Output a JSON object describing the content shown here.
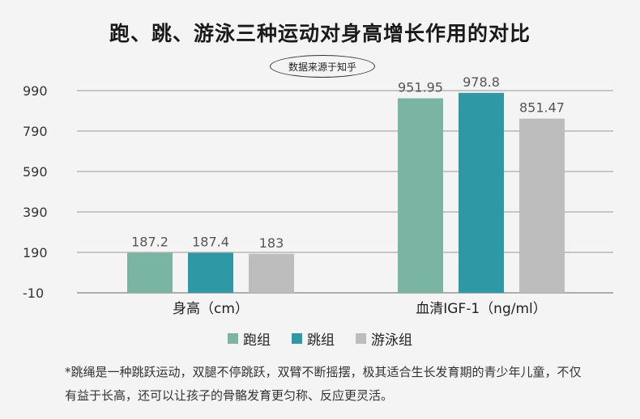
{
  "chart_data": {
    "type": "bar",
    "title": "跑、跳、游泳三种运动对身高增长作用的对比",
    "source": "数据来源于知乎",
    "categories": [
      "身高（cm）",
      "血清IGF-1（ng/ml）"
    ],
    "series": [
      {
        "name": "跑组",
        "color": "#7ab5a3",
        "values": [
          187.2,
          951.95
        ],
        "labels": [
          "187.2",
          "951.95"
        ]
      },
      {
        "name": "跳组",
        "color": "#2e98a4",
        "values": [
          187.4,
          978.8
        ],
        "labels": [
          "187.4",
          "978.8"
        ]
      },
      {
        "name": "游泳组",
        "color": "#bdbdbd",
        "values": [
          183,
          851.47
        ],
        "labels": [
          "183",
          "851.47"
        ]
      }
    ],
    "yticks": [
      -10,
      190,
      390,
      590,
      790,
      990
    ],
    "ylim": [
      -10,
      990
    ],
    "grid": true,
    "legend": "bottom"
  },
  "note": "*跳绳是一种跳跃运动，双腿不停跳跃，双臂不断摇摆，极其适合生长发育期的青少年儿童，不仅有益于长高，还可以让孩子的骨骼发育更匀称、反应更灵活。"
}
